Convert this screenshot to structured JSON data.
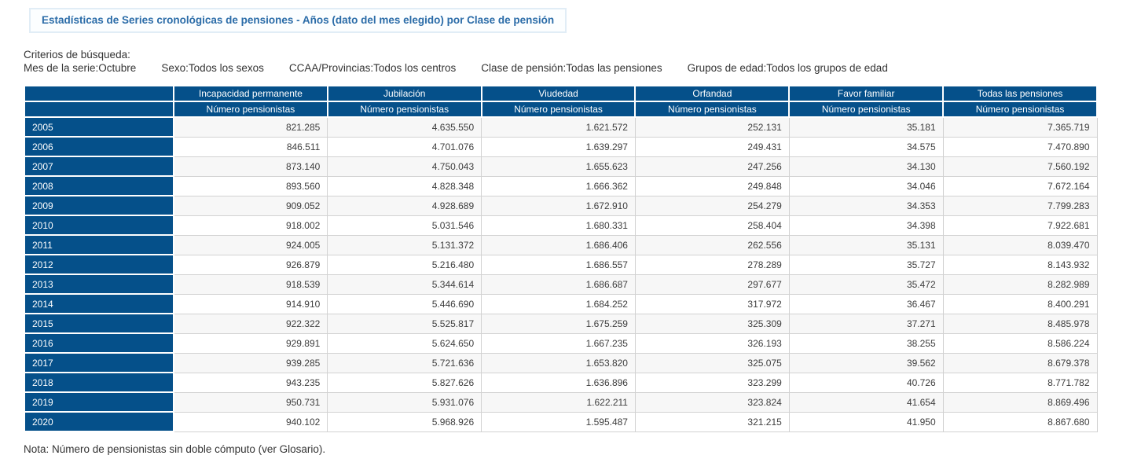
{
  "title": "Estadísticas de Series cronológicas de pensiones - Años (dato del mes elegido) por Clase de pensión",
  "criteria": {
    "label": "Criterios de búsqueda:",
    "items": [
      {
        "name": "Mes de la serie",
        "value": "Octubre"
      },
      {
        "name": "Sexo",
        "value": "Todos los sexos"
      },
      {
        "name": "CCAA/Provincias",
        "value": "Todos los centros"
      },
      {
        "name": "Clase de pensión",
        "value": "Todas las pensiones"
      },
      {
        "name": "Grupos de edad",
        "value": "Todos los grupos de edad"
      }
    ]
  },
  "table": {
    "column_groups": [
      "Incapacidad permanente",
      "Jubilación",
      "Viudedad",
      "Orfandad",
      "Favor familiar",
      "Todas las pensiones"
    ],
    "subheader": "Número pensionistas",
    "rows": [
      {
        "year": "2005",
        "values": [
          "821.285",
          "4.635.550",
          "1.621.572",
          "252.131",
          "35.181",
          "7.365.719"
        ]
      },
      {
        "year": "2006",
        "values": [
          "846.511",
          "4.701.076",
          "1.639.297",
          "249.431",
          "34.575",
          "7.470.890"
        ]
      },
      {
        "year": "2007",
        "values": [
          "873.140",
          "4.750.043",
          "1.655.623",
          "247.256",
          "34.130",
          "7.560.192"
        ]
      },
      {
        "year": "2008",
        "values": [
          "893.560",
          "4.828.348",
          "1.666.362",
          "249.848",
          "34.046",
          "7.672.164"
        ]
      },
      {
        "year": "2009",
        "values": [
          "909.052",
          "4.928.689",
          "1.672.910",
          "254.279",
          "34.353",
          "7.799.283"
        ]
      },
      {
        "year": "2010",
        "values": [
          "918.002",
          "5.031.546",
          "1.680.331",
          "258.404",
          "34.398",
          "7.922.681"
        ]
      },
      {
        "year": "2011",
        "values": [
          "924.005",
          "5.131.372",
          "1.686.406",
          "262.556",
          "35.131",
          "8.039.470"
        ]
      },
      {
        "year": "2012",
        "values": [
          "926.879",
          "5.216.480",
          "1.686.557",
          "278.289",
          "35.727",
          "8.143.932"
        ]
      },
      {
        "year": "2013",
        "values": [
          "918.539",
          "5.344.614",
          "1.686.687",
          "297.677",
          "35.472",
          "8.282.989"
        ]
      },
      {
        "year": "2014",
        "values": [
          "914.910",
          "5.446.690",
          "1.684.252",
          "317.972",
          "36.467",
          "8.400.291"
        ]
      },
      {
        "year": "2015",
        "values": [
          "922.322",
          "5.525.817",
          "1.675.259",
          "325.309",
          "37.271",
          "8.485.978"
        ]
      },
      {
        "year": "2016",
        "values": [
          "929.891",
          "5.624.650",
          "1.667.235",
          "326.193",
          "38.255",
          "8.586.224"
        ]
      },
      {
        "year": "2017",
        "values": [
          "939.285",
          "5.721.636",
          "1.653.820",
          "325.075",
          "39.562",
          "8.679.378"
        ]
      },
      {
        "year": "2018",
        "values": [
          "943.235",
          "5.827.626",
          "1.636.896",
          "323.299",
          "40.726",
          "8.771.782"
        ]
      },
      {
        "year": "2019",
        "values": [
          "950.731",
          "5.931.076",
          "1.622.211",
          "323.824",
          "41.654",
          "8.869.496"
        ]
      },
      {
        "year": "2020",
        "values": [
          "940.102",
          "5.968.926",
          "1.595.487",
          "321.215",
          "41.950",
          "8.867.680"
        ]
      }
    ]
  },
  "note": "Nota: Número de pensionistas sin doble cómputo (ver Glosario).",
  "colors": {
    "header_blue": "#05508a",
    "title_blue": "#2b6ca8",
    "stripe_grey": "#f7f7f7",
    "grid_grey": "#d2d2d2"
  }
}
